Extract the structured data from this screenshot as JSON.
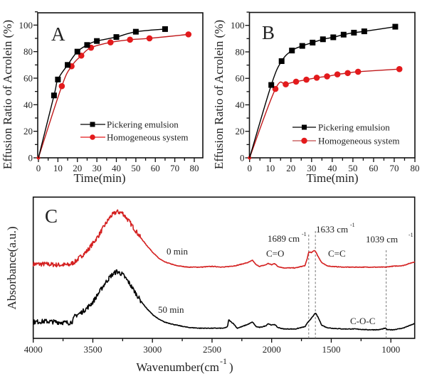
{
  "chart_data": [
    {
      "type": "line",
      "panel": "A",
      "title": "",
      "xlabel": "Time(min)",
      "ylabel": "Effusion Ratio of Acrolein (%)",
      "xlim": [
        0,
        85
      ],
      "ylim": [
        0,
        110
      ],
      "xticks": [
        0,
        10,
        20,
        30,
        40,
        50,
        60,
        70,
        80
      ],
      "yticks": [
        0,
        20,
        40,
        60,
        80,
        100
      ],
      "grid": false,
      "legend_position": "bottom-right",
      "series": [
        {
          "name": "Pickering emulsion",
          "color": "#000000",
          "marker": "square",
          "x": [
            0,
            8,
            10,
            15,
            20,
            25,
            30,
            40,
            50,
            65
          ],
          "y": [
            0,
            47,
            59,
            70,
            80,
            85,
            88,
            91,
            95,
            97
          ]
        },
        {
          "name": "Homogeneous system",
          "color": "#e31a1c",
          "marker": "circle",
          "x": [
            0,
            12,
            17,
            22,
            27,
            37,
            47,
            57,
            77
          ],
          "y": [
            0,
            54,
            69,
            77,
            83,
            87,
            89,
            90,
            93
          ]
        }
      ]
    },
    {
      "type": "line",
      "panel": "B",
      "title": "",
      "xlabel": "Time(min)",
      "ylabel": "Effusion Ratio of Acrolein (%)",
      "xlim": [
        0,
        80
      ],
      "ylim": [
        0,
        110
      ],
      "xticks": [
        0,
        10,
        20,
        30,
        40,
        50,
        60,
        70,
        80
      ],
      "yticks": [
        0,
        20,
        40,
        60,
        80,
        100
      ],
      "grid": false,
      "legend_position": "bottom-right",
      "series": [
        {
          "name": "Pickering emulsion",
          "color": "#000000",
          "marker": "square",
          "x": [
            0,
            10.5,
            15.5,
            20.5,
            25.5,
            30.5,
            35.5,
            40.5,
            45.5,
            50.5,
            55.5,
            70.5
          ],
          "y": [
            0,
            55,
            73,
            81,
            84.5,
            87,
            89.5,
            91,
            93,
            94.5,
            95.5,
            99
          ]
        },
        {
          "name": "Homogeneous system",
          "color": "#e31a1c",
          "marker": "circle",
          "x": [
            0,
            12.5,
            17.5,
            22.5,
            27.5,
            32.5,
            37.5,
            42.5,
            47.5,
            52.5,
            72.5
          ],
          "y": [
            0,
            52,
            55.5,
            57.5,
            59,
            60.5,
            61.5,
            63,
            64,
            65,
            67
          ]
        }
      ]
    },
    {
      "type": "line",
      "panel": "C",
      "title": "",
      "xlabel": "Wavenumber(cm",
      "xlabel_sup": "-1",
      "xlabel_close": ")",
      "ylabel": "Absorbance(a.u.)",
      "xlim": [
        4000,
        800
      ],
      "x_reversed": true,
      "xticks": [
        4000,
        3500,
        3000,
        2500,
        2000,
        1500,
        1000
      ],
      "xticks_minor": [
        3750,
        3250,
        2750,
        2250,
        1750,
        1250
      ],
      "yticks": [],
      "grid": false,
      "series": [
        {
          "name": "0 min",
          "color": "#e31a1c",
          "noise_region": [
            4000,
            3100
          ],
          "points": [
            [
              4000,
              0.07
            ],
            [
              3900,
              0.07
            ],
            [
              3800,
              0.06
            ],
            [
              3700,
              0.06
            ],
            [
              3650,
              0.1
            ],
            [
              3600,
              0.17
            ],
            [
              3550,
              0.24
            ],
            [
              3500,
              0.34
            ],
            [
              3450,
              0.45
            ],
            [
              3400,
              0.58
            ],
            [
              3350,
              0.7
            ],
            [
              3300,
              0.76
            ],
            [
              3250,
              0.74
            ],
            [
              3200,
              0.64
            ],
            [
              3150,
              0.53
            ],
            [
              3100,
              0.42
            ],
            [
              3050,
              0.32
            ],
            [
              3000,
              0.23
            ],
            [
              2950,
              0.15
            ],
            [
              2900,
              0.1
            ],
            [
              2800,
              0.05
            ],
            [
              2700,
              0.03
            ],
            [
              2600,
              0.03
            ],
            [
              2500,
              0.04
            ],
            [
              2400,
              0.03
            ],
            [
              2300,
              0.05
            ],
            [
              2200,
              0.09
            ],
            [
              2160,
              0.12
            ],
            [
              2130,
              0.06
            ],
            [
              2100,
              0.04
            ],
            [
              2050,
              0.06
            ],
            [
              2030,
              0.08
            ],
            [
              2000,
              0.06
            ],
            [
              1975,
              0.08
            ],
            [
              1950,
              0.04
            ],
            [
              1900,
              0.02
            ],
            [
              1800,
              0.02
            ],
            [
              1720,
              0.05
            ],
            [
              1700,
              0.15
            ],
            [
              1689,
              0.23
            ],
            [
              1665,
              0.22
            ],
            [
              1645,
              0.25
            ],
            [
              1633,
              0.24
            ],
            [
              1610,
              0.17
            ],
            [
              1580,
              0.09
            ],
            [
              1540,
              0.05
            ],
            [
              1500,
              0.04
            ],
            [
              1400,
              0.03
            ],
            [
              1300,
              0.03
            ],
            [
              1200,
              0.03
            ],
            [
              1100,
              0.03
            ],
            [
              1039,
              0.03
            ],
            [
              1000,
              0.04
            ],
            [
              900,
              0.05
            ],
            [
              800,
              0.1
            ]
          ]
        },
        {
          "name": "50 min",
          "color": "#000000",
          "noise_region": [
            4000,
            3100
          ],
          "points": [
            [
              4000,
              0.12
            ],
            [
              3900,
              0.13
            ],
            [
              3800,
              0.12
            ],
            [
              3700,
              0.11
            ],
            [
              3670,
              0.13
            ],
            [
              3650,
              0.2
            ],
            [
              3600,
              0.24
            ],
            [
              3550,
              0.3
            ],
            [
              3500,
              0.38
            ],
            [
              3450,
              0.5
            ],
            [
              3400,
              0.62
            ],
            [
              3350,
              0.72
            ],
            [
              3300,
              0.78
            ],
            [
              3250,
              0.74
            ],
            [
              3200,
              0.64
            ],
            [
              3150,
              0.52
            ],
            [
              3100,
              0.4
            ],
            [
              3050,
              0.3
            ],
            [
              3000,
              0.22
            ],
            [
              2950,
              0.16
            ],
            [
              2900,
              0.12
            ],
            [
              2800,
              0.08
            ],
            [
              2700,
              0.05
            ],
            [
              2600,
              0.04
            ],
            [
              2500,
              0.04
            ],
            [
              2400,
              0.04
            ],
            [
              2370,
              0.06
            ],
            [
              2360,
              0.15
            ],
            [
              2340,
              0.12
            ],
            [
              2320,
              0.1
            ],
            [
              2290,
              0.04
            ],
            [
              2250,
              0.06
            ],
            [
              2200,
              0.09
            ],
            [
              2160,
              0.12
            ],
            [
              2130,
              0.06
            ],
            [
              2100,
              0.05
            ],
            [
              2050,
              0.07
            ],
            [
              2030,
              0.1
            ],
            [
              2000,
              0.08
            ],
            [
              1975,
              0.09
            ],
            [
              1950,
              0.05
            ],
            [
              1900,
              0.03
            ],
            [
              1800,
              0.03
            ],
            [
              1720,
              0.06
            ],
            [
              1690,
              0.13
            ],
            [
              1660,
              0.18
            ],
            [
              1633,
              0.24
            ],
            [
              1610,
              0.18
            ],
            [
              1580,
              0.08
            ],
            [
              1540,
              0.05
            ],
            [
              1500,
              0.04
            ],
            [
              1400,
              0.03
            ],
            [
              1300,
              0.03
            ],
            [
              1200,
              0.02
            ],
            [
              1100,
              0.02
            ],
            [
              1045,
              0.04
            ],
            [
              1030,
              0.02
            ],
            [
              980,
              0.02
            ],
            [
              900,
              0.04
            ],
            [
              800,
              0.1
            ]
          ]
        }
      ],
      "reference_lines": [
        1689,
        1633,
        1039
      ],
      "annotations": [
        {
          "text": "0 min",
          "target": "red-trace"
        },
        {
          "text": "50 min",
          "target": "black-trace"
        },
        {
          "text": "1689 cm",
          "sup": "-1"
        },
        {
          "text": "1633 cm",
          "sup": "-1"
        },
        {
          "text": "1039 cm",
          "sup": "-1"
        },
        {
          "text": "C=O"
        },
        {
          "text": "C=C"
        },
        {
          "text": "C-O-C"
        }
      ]
    }
  ],
  "panels": {
    "A": {
      "letter": "A"
    },
    "B": {
      "letter": "B"
    },
    "C": {
      "letter": "C"
    }
  }
}
